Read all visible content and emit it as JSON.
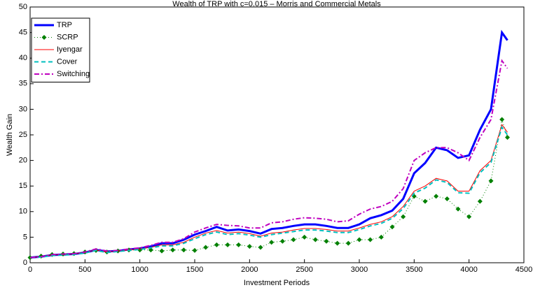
{
  "chart_data": {
    "type": "line",
    "title": "Wealth of TRP with c=0.015 – Morris and Commercial Metals",
    "x_label": "Investment Periods",
    "y_label": "Wealth Gain",
    "xlim": [
      0,
      4500
    ],
    "ylim": [
      0,
      50
    ],
    "xticks": [
      0,
      500,
      1000,
      1500,
      2000,
      2500,
      3000,
      3500,
      4000,
      4500
    ],
    "yticks": [
      0,
      5,
      10,
      15,
      20,
      25,
      30,
      35,
      40,
      45,
      50
    ],
    "grid": false,
    "legend": "upper left",
    "x": [
      0,
      100,
      200,
      300,
      400,
      500,
      600,
      700,
      800,
      900,
      1000,
      1100,
      1200,
      1300,
      1400,
      1500,
      1600,
      1700,
      1800,
      1900,
      2000,
      2100,
      2200,
      2300,
      2400,
      2500,
      2600,
      2700,
      2800,
      2900,
      3000,
      3100,
      3200,
      3300,
      3400,
      3500,
      3600,
      3700,
      3800,
      3900,
      4000,
      4100,
      4200,
      4300,
      4350
    ],
    "series": [
      {
        "name": "TRP",
        "color": "#0000ff",
        "linestyle": "-",
        "linewidth": 3,
        "values": [
          1,
          1.2,
          1.5,
          1.6,
          1.7,
          2.0,
          2.5,
          2.2,
          2.3,
          2.6,
          2.8,
          3.2,
          3.8,
          3.8,
          4.5,
          5.5,
          6.2,
          7.0,
          6.3,
          6.5,
          6.2,
          5.7,
          6.6,
          6.8,
          7.2,
          7.5,
          7.5,
          7.2,
          6.8,
          6.8,
          7.5,
          8.7,
          9.3,
          10.2,
          12.5,
          17.5,
          19.5,
          22.5,
          22.0,
          20.5,
          21,
          26,
          30,
          45,
          43.5
        ]
      },
      {
        "name": "SCRP",
        "color": "#008000",
        "linestyle": ":",
        "linewidth": 1,
        "marker": "diamond",
        "values": [
          1,
          1.3,
          1.6,
          1.7,
          1.8,
          2.1,
          2.4,
          2.1,
          2.3,
          2.5,
          2.5,
          2.5,
          2.3,
          2.5,
          2.5,
          2.4,
          3,
          3.5,
          3.5,
          3.5,
          3.2,
          3.0,
          4,
          4.2,
          4.5,
          5,
          4.5,
          4.2,
          3.8,
          3.8,
          4.5,
          4.5,
          5,
          7,
          9,
          13,
          12,
          13,
          12.5,
          10.5,
          9,
          12,
          16,
          28,
          24.5
        ]
      },
      {
        "name": "Iyengar",
        "color": "#ff0000",
        "linestyle": "-",
        "linewidth": 1,
        "values": [
          1,
          1.2,
          1.5,
          1.6,
          1.7,
          2.0,
          2.5,
          2.1,
          2.3,
          2.5,
          2.7,
          3.0,
          3.5,
          3.5,
          4.0,
          5.0,
          5.8,
          6.3,
          5.8,
          6.0,
          5.7,
          5.2,
          5.8,
          6.0,
          6.4,
          6.7,
          6.7,
          6.5,
          6.2,
          6.2,
          6.8,
          7.5,
          8.0,
          9.0,
          11.0,
          14.0,
          15,
          16.5,
          16,
          14,
          14,
          18,
          20,
          27,
          25.5
        ]
      },
      {
        "name": "Cover",
        "color": "#00bfbf",
        "linestyle": "--",
        "linewidth": 2,
        "values": [
          1,
          1.1,
          1.4,
          1.5,
          1.6,
          1.9,
          2.4,
          2.0,
          2.2,
          2.4,
          2.6,
          2.9,
          3.3,
          3.3,
          3.8,
          4.7,
          5.5,
          6.0,
          5.5,
          5.7,
          5.4,
          5.0,
          5.5,
          5.8,
          6.1,
          6.4,
          6.4,
          6.2,
          5.9,
          5.9,
          6.5,
          7.2,
          7.7,
          8.7,
          10.6,
          13.6,
          14.6,
          16.2,
          15.7,
          13.7,
          13.6,
          17.6,
          19.6,
          26.5,
          25
        ]
      },
      {
        "name": "Switching",
        "color": "#bf00bf",
        "linestyle": "-.",
        "linewidth": 2,
        "values": [
          1,
          1.2,
          1.6,
          1.7,
          1.8,
          2.1,
          2.7,
          2.3,
          2.4,
          2.7,
          2.9,
          3.4,
          4.0,
          4.0,
          4.7,
          6,
          6.8,
          7.5,
          7.3,
          7.2,
          6.8,
          6.8,
          7.8,
          8,
          8.5,
          8.8,
          8.7,
          8.5,
          8,
          8.2,
          9.5,
          10.5,
          11,
          12,
          14.5,
          20,
          21.5,
          22.5,
          22.5,
          21.5,
          20,
          24.5,
          28,
          39.5,
          38
        ]
      }
    ]
  }
}
